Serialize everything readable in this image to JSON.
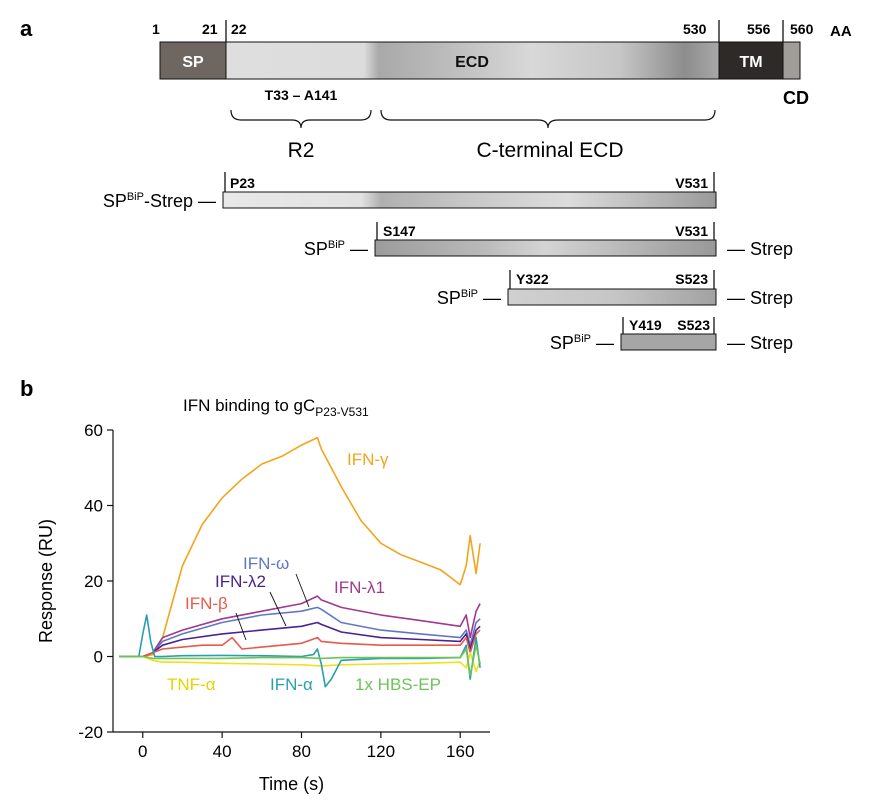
{
  "panel_a": {
    "label": "a",
    "domain_bar": {
      "units": "AA",
      "positions": [
        "1",
        "21",
        "22",
        "530",
        "556",
        "560"
      ],
      "segments": [
        "SP",
        "ECD",
        "TM"
      ],
      "cd_label": "CD"
    },
    "region": "T33 – A141",
    "brace_labels": [
      "R2",
      "C-terminal ECD"
    ],
    "constructs": [
      {
        "prefix": "SP",
        "sup": "BiP",
        "prefix_suffix": "-Strep —",
        "start": "P23",
        "end": "V531",
        "strep": ""
      },
      {
        "prefix": "SP",
        "sup": "BiP",
        "prefix_suffix": " —",
        "start": "S147",
        "end": "V531",
        "strep": "— Strep"
      },
      {
        "prefix": "SP",
        "sup": "BiP",
        "prefix_suffix": " —",
        "start": "Y322",
        "end": "S523",
        "strep": "— Strep"
      },
      {
        "prefix": "SP",
        "sup": "BiP",
        "prefix_suffix": " —",
        "start": "Y419",
        "end": "S523",
        "strep": "— Strep"
      }
    ]
  },
  "panel_b": {
    "label": "b",
    "title_main": "IFN binding to gC",
    "title_sub": "P23-V531"
  },
  "chart_data": {
    "type": "line",
    "title": "IFN binding to gCP23-V531",
    "xlabel": "Time (s)",
    "ylabel": "Response (RU)",
    "xlim": [
      -15,
      175
    ],
    "ylim": [
      -20,
      60
    ],
    "xticks": [
      0,
      40,
      80,
      120,
      160
    ],
    "yticks": [
      -20,
      0,
      20,
      40,
      60
    ],
    "grid": false,
    "series": [
      {
        "name": "IFN-γ",
        "color": "#f2a51c",
        "x": [
          -12,
          0,
          5,
          10,
          20,
          30,
          40,
          50,
          60,
          70,
          80,
          88,
          90,
          100,
          110,
          120,
          130,
          140,
          150,
          155,
          160,
          163,
          165,
          168,
          170
        ],
        "y": [
          0,
          0,
          0.5,
          5,
          24,
          35,
          42,
          47,
          51,
          53,
          56,
          58,
          55,
          45,
          36,
          30,
          27,
          25,
          23,
          21,
          19,
          24,
          32,
          22,
          30
        ]
      },
      {
        "name": "IFN-λ1",
        "color": "#9e3a8f",
        "x": [
          -12,
          0,
          5,
          10,
          20,
          40,
          60,
          80,
          88,
          90,
          100,
          120,
          140,
          160,
          163,
          165,
          168,
          170
        ],
        "y": [
          0,
          0,
          1,
          5,
          7,
          10,
          12,
          14,
          16,
          15,
          13,
          11,
          9.5,
          8,
          11,
          5,
          12,
          14
        ]
      },
      {
        "name": "IFN-ω",
        "color": "#6277c4",
        "x": [
          -12,
          0,
          5,
          10,
          20,
          40,
          60,
          80,
          88,
          90,
          100,
          120,
          140,
          160,
          163,
          165,
          168,
          170
        ],
        "y": [
          0,
          0,
          1,
          4,
          6,
          9,
          11,
          12,
          13,
          12.5,
          9,
          7,
          6,
          5,
          7,
          3,
          9,
          10
        ]
      },
      {
        "name": "IFN-λ2",
        "color": "#4b2290",
        "x": [
          -12,
          0,
          5,
          10,
          20,
          40,
          60,
          80,
          88,
          90,
          100,
          120,
          140,
          160,
          163,
          165,
          168,
          170
        ],
        "y": [
          0,
          0,
          1,
          3,
          4.5,
          6,
          7,
          8,
          9,
          8.5,
          6.5,
          5,
          4.5,
          4,
          6,
          2,
          7,
          8
        ]
      },
      {
        "name": "IFN-β",
        "color": "#e65a4a",
        "x": [
          -12,
          0,
          5,
          10,
          20,
          30,
          40,
          45,
          50,
          60,
          80,
          88,
          90,
          100,
          120,
          140,
          160,
          163,
          165,
          168,
          170
        ],
        "y": [
          0,
          0,
          1,
          2,
          2.5,
          3,
          3,
          5,
          2,
          2.5,
          3.5,
          5,
          4,
          3.5,
          3,
          3,
          3,
          5,
          1,
          6,
          7
        ]
      },
      {
        "name": "TNF-α",
        "color": "#f0e020",
        "x": [
          -12,
          0,
          5,
          10,
          20,
          40,
          60,
          80,
          90,
          100,
          120,
          140,
          160,
          163,
          165,
          168,
          170
        ],
        "y": [
          0,
          0,
          -1,
          -1.5,
          -1.5,
          -1.8,
          -2,
          -2.2,
          -2.5,
          -2.2,
          -2,
          -1.8,
          -1.5,
          -3,
          1,
          -4,
          -1
        ]
      },
      {
        "name": "IFN-α",
        "color": "#2a9fae",
        "x": [
          -12,
          -2,
          0,
          2,
          4,
          6,
          10,
          20,
          40,
          60,
          80,
          86,
          88,
          90,
          92,
          95,
          100,
          120,
          140,
          160,
          163,
          165,
          168,
          170
        ],
        "y": [
          0,
          0,
          6,
          11,
          4,
          0,
          0,
          0.2,
          0.3,
          0.2,
          0,
          0.5,
          2,
          -2,
          -8,
          -6,
          -1,
          -0.5,
          -0.5,
          -0.3,
          3,
          -6,
          5,
          -3
        ]
      },
      {
        "name": "1x HBS-EP",
        "color": "#6cc35a",
        "x": [
          -12,
          0,
          5,
          10,
          20,
          40,
          60,
          80,
          90,
          100,
          120,
          140,
          160,
          163,
          165,
          168,
          170
        ],
        "y": [
          0,
          0,
          -0.5,
          -0.5,
          -0.5,
          -0.5,
          -0.3,
          -0.3,
          -0.5,
          -0.3,
          -0.3,
          -0.3,
          -0.3,
          2,
          -5,
          3,
          -2
        ]
      }
    ]
  }
}
